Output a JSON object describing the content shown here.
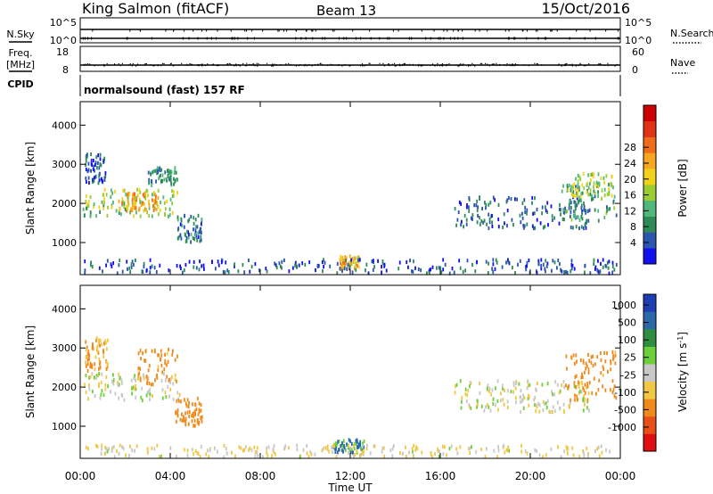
{
  "header": {
    "station": "King Salmon (fitACF)",
    "beam": "Beam 13",
    "date": "15/Oct/2016"
  },
  "side_labels": {
    "nsky": "N.Sky",
    "nsearch": "N.Search",
    "freq_line1": "Freq.",
    "freq_line2": "[MHz]",
    "nave": "Nave",
    "cpid": "CPID",
    "cpid_value": "normalsound (fast) 157 RF"
  },
  "noise_panel": {
    "left_ticks": [
      "10^5",
      "10^0"
    ],
    "right_ticks": [
      "10^5",
      "10^0"
    ]
  },
  "freq_panel": {
    "left_ticks": [
      "18",
      "8"
    ],
    "right_ticks": [
      "60",
      "0"
    ],
    "freq_mhz": 10.5,
    "nave": 17
  },
  "time_axis": {
    "label": "Time UT",
    "ticks": [
      "00:00",
      "04:00",
      "08:00",
      "12:00",
      "16:00",
      "20:00",
      "00:00"
    ]
  },
  "chart_data": [
    {
      "type": "heatmap",
      "name": "power",
      "ylabel": "Slant Range [km]",
      "yticks": [
        "1000",
        "2000",
        "3000",
        "4000"
      ],
      "ylim": [
        180,
        4600
      ],
      "xlim_hours": [
        0,
        24
      ],
      "colorbar_label": "Power [dB]",
      "colorbar_ticks": [
        "4",
        "8",
        "12",
        "16",
        "20",
        "24",
        "28"
      ],
      "colorscale": [
        "#1111ee",
        "#2a56b0",
        "#2e8b57",
        "#4fb87a",
        "#9acd32",
        "#f2d21b",
        "#f5a623",
        "#ef6d1a",
        "#e03214",
        "#cc0000"
      ],
      "regions": [
        {
          "t": [
            0.1,
            4.4
          ],
          "r": [
            1650,
            2050
          ],
          "p": 12
        },
        {
          "t": [
            0.2,
            4.3
          ],
          "r": [
            1950,
            2350
          ],
          "p": 14
        },
        {
          "t": [
            1.6,
            3.5
          ],
          "r": [
            1800,
            2250
          ],
          "p": 20
        },
        {
          "t": [
            0.2,
            1.1
          ],
          "r": [
            2500,
            3250
          ],
          "p": 5
        },
        {
          "t": [
            3.0,
            4.3
          ],
          "r": [
            2450,
            2900
          ],
          "p": 8
        },
        {
          "t": [
            4.3,
            5.4
          ],
          "r": [
            1000,
            1700
          ],
          "p": 6
        },
        {
          "t": [
            11.5,
            12.4
          ],
          "r": [
            300,
            650
          ],
          "p": 18
        },
        {
          "t": [
            0.1,
            24.0
          ],
          "r": [
            200,
            550
          ],
          "p": 4
        },
        {
          "t": [
            16.6,
            22.6
          ],
          "r": [
            1350,
            2150
          ],
          "p": 5
        },
        {
          "t": [
            21.3,
            23.8
          ],
          "r": [
            1500,
            2500
          ],
          "p": 9
        },
        {
          "t": [
            21.6,
            23.6
          ],
          "r": [
            2150,
            2750
          ],
          "p": 14
        }
      ]
    },
    {
      "type": "heatmap",
      "name": "velocity",
      "ylabel": "Slant Range [km]",
      "yticks": [
        "1000",
        "2000",
        "3000",
        "4000"
      ],
      "ylim": [
        180,
        4600
      ],
      "xlim_hours": [
        0,
        24
      ],
      "colorbar_label": "Velocity [m s^-1]",
      "colorbar_ticks": [
        "1000",
        "500",
        "100",
        "25",
        "-25",
        "-100",
        "-500",
        "-1000"
      ],
      "colorscale": [
        "#1e3fb4",
        "#2b6aa8",
        "#2f8e3f",
        "#6dcf3a",
        "#c8c8c8",
        "#f2c744",
        "#f08a1c",
        "#e8501a",
        "#e01010"
      ],
      "regions": [
        {
          "t": [
            0.1,
            4.4
          ],
          "r": [
            1650,
            2350
          ],
          "v": 0
        },
        {
          "t": [
            0.2,
            1.2
          ],
          "r": [
            2400,
            3250
          ],
          "v": -120
        },
        {
          "t": [
            2.5,
            4.4
          ],
          "r": [
            2050,
            2950
          ],
          "v": -150
        },
        {
          "t": [
            4.2,
            5.4
          ],
          "r": [
            1000,
            1700
          ],
          "v": -300
        },
        {
          "t": [
            11.2,
            12.6
          ],
          "r": [
            300,
            650
          ],
          "v": 120
        },
        {
          "t": [
            0.1,
            24.0
          ],
          "r": [
            200,
            500
          ],
          "v": -30
        },
        {
          "t": [
            16.6,
            22.6
          ],
          "r": [
            1350,
            2150
          ],
          "v": 0
        },
        {
          "t": [
            21.5,
            23.8
          ],
          "r": [
            1650,
            2900
          ],
          "v": -150
        }
      ]
    }
  ]
}
